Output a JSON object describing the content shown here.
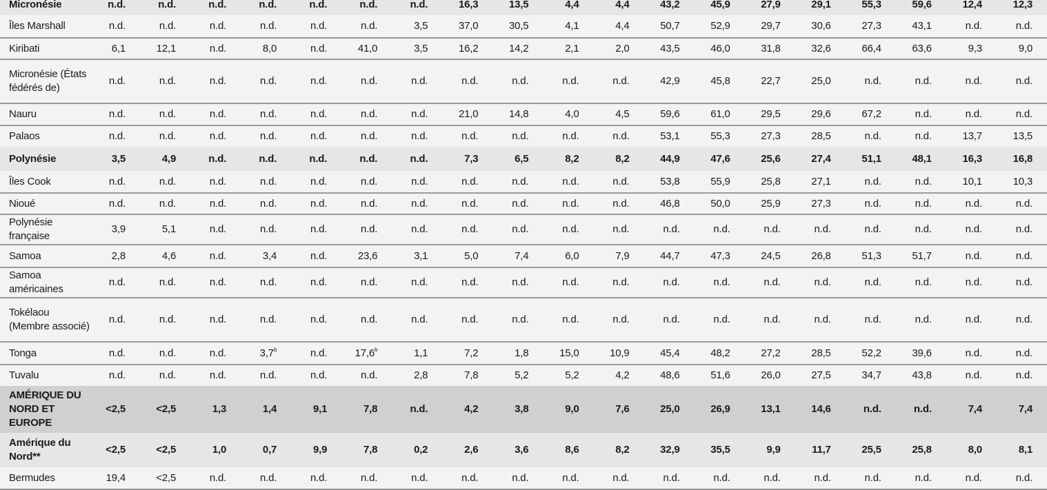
{
  "table": {
    "rows": [
      {
        "type": "group",
        "h": 31,
        "name": "Micronésie",
        "cells": [
          "n.d.",
          "n.d.",
          "n.d.",
          "n.d.",
          "n.d.",
          "n.d.",
          "n.d.",
          "16,3",
          "13,5",
          "4,4",
          "4,4",
          "43,2",
          "45,9",
          "27,9",
          "29,1",
          "55,3",
          "59,6",
          "12,4",
          "12,3"
        ]
      },
      {
        "type": "normal",
        "h": 33,
        "name": "Îles Marshall",
        "cells": [
          "n.d.",
          "n.d.",
          "n.d.",
          "n.d.",
          "n.d.",
          "n.d.",
          "3,5",
          "37,0",
          "30,5",
          "4,1",
          "4,4",
          "50,7",
          "52,9",
          "29,7",
          "30,6",
          "27,3",
          "43,1",
          "n.d.",
          "n.d."
        ]
      },
      {
        "type": "normal",
        "h": 31,
        "name": "Kiribati",
        "cells": [
          "6,1",
          "12,1",
          "n.d.",
          "8,0",
          "n.d.",
          "41,0",
          "3,5",
          "16,2",
          "14,2",
          "2,1",
          "2,0",
          "43,5",
          "46,0",
          "31,8",
          "32,6",
          "66,4",
          "63,6",
          "9,3",
          "9,0"
        ]
      },
      {
        "type": "normal",
        "h": 64,
        "name": "Micronésie (États fédérés de)",
        "cells": [
          "n.d.",
          "n.d.",
          "n.d.",
          "n.d.",
          "n.d.",
          "n.d.",
          "n.d.",
          "n.d.",
          "n.d.",
          "n.d.",
          "n.d.",
          "42,9",
          "45,8",
          "22,7",
          "25,0",
          "n.d.",
          "n.d.",
          "n.d.",
          "n.d."
        ]
      },
      {
        "type": "normal",
        "h": 32,
        "name": "Nauru",
        "cells": [
          "n.d.",
          "n.d.",
          "n.d.",
          "n.d.",
          "n.d.",
          "n.d.",
          "n.d.",
          "21,0",
          "14,8",
          "4,0",
          "4,5",
          "59,6",
          "61,0",
          "29,5",
          "29,6",
          "67,2",
          "n.d.",
          "n.d.",
          "n.d."
        ]
      },
      {
        "type": "normal",
        "h": 31,
        "name": "Palaos",
        "nob": true,
        "cells": [
          "n.d.",
          "n.d.",
          "n.d.",
          "n.d.",
          "n.d.",
          "n.d.",
          "n.d.",
          "n.d.",
          "n.d.",
          "n.d.",
          "n.d.",
          "53,1",
          "55,3",
          "27,3",
          "28,5",
          "n.d.",
          "n.d.",
          "13,7",
          "13,5"
        ]
      },
      {
        "type": "group",
        "h": 35,
        "name": "Polynésie",
        "cells": [
          "3,5",
          "4,9",
          "n.d.",
          "n.d.",
          "n.d.",
          "n.d.",
          "n.d.",
          "7,3",
          "6,5",
          "8,2",
          "8,2",
          "44,9",
          "47,6",
          "25,6",
          "27,4",
          "51,1",
          "48,1",
          "16,3",
          "16,8"
        ]
      },
      {
        "type": "normal",
        "h": 32,
        "name": "Îles Cook",
        "cells": [
          "n.d.",
          "n.d.",
          "n.d.",
          "n.d.",
          "n.d.",
          "n.d.",
          "n.d.",
          "n.d.",
          "n.d.",
          "n.d.",
          "n.d.",
          "53,8",
          "55,9",
          "25,8",
          "27,1",
          "n.d.",
          "n.d.",
          "10,1",
          "10,3"
        ]
      },
      {
        "type": "normal",
        "h": 31,
        "name": "Nioué",
        "cells": [
          "n.d.",
          "n.d.",
          "n.d.",
          "n.d.",
          "n.d.",
          "n.d.",
          "n.d.",
          "n.d.",
          "n.d.",
          "n.d.",
          "n.d.",
          "46,8",
          "50,0",
          "25,9",
          "27,3",
          "n.d.",
          "n.d.",
          "n.d.",
          "n.d."
        ]
      },
      {
        "type": "normal",
        "h": 44,
        "name": "Polynésie française",
        "cells": [
          "3,9",
          "5,1",
          "n.d.",
          "n.d.",
          "n.d.",
          "n.d.",
          "n.d.",
          "n.d.",
          "n.d.",
          "n.d.",
          "n.d.",
          "n.d.",
          "n.d.",
          "n.d.",
          "n.d.",
          "n.d.",
          "n.d.",
          "n.d.",
          "n.d."
        ]
      },
      {
        "type": "normal",
        "h": 33,
        "name": "Samoa",
        "cells": [
          "2,8",
          "4,6",
          "n.d.",
          "3,4",
          "n.d.",
          "23,6",
          "3,1",
          "5,0",
          "7,4",
          "6,0",
          "7,9",
          "44,7",
          "47,3",
          "24,5",
          "26,8",
          "51,3",
          "51,7",
          "n.d.",
          "n.d."
        ]
      },
      {
        "type": "normal",
        "h": 44,
        "name": "Samoa américaines",
        "cells": [
          "n.d.",
          "n.d.",
          "n.d.",
          "n.d.",
          "n.d.",
          "n.d.",
          "n.d.",
          "n.d.",
          "n.d.",
          "n.d.",
          "n.d.",
          "n.d.",
          "n.d.",
          "n.d.",
          "n.d.",
          "n.d.",
          "n.d.",
          "n.d.",
          "n.d."
        ]
      },
      {
        "type": "normal",
        "h": 64,
        "name": "Tokélaou (Membre associé)",
        "cells": [
          "n.d.",
          "n.d.",
          "n.d.",
          "n.d.",
          "n.d.",
          "n.d.",
          "n.d.",
          "n.d.",
          "n.d.",
          "n.d.",
          "n.d.",
          "n.d.",
          "n.d.",
          "n.d.",
          "n.d.",
          "n.d.",
          "n.d.",
          "n.d.",
          "n.d."
        ]
      },
      {
        "type": "normal",
        "h": 33,
        "name": "Tonga",
        "cells": [
          "n.d.",
          "n.d.",
          "n.d.",
          {
            "v": "3,7",
            "sup": "b"
          },
          "n.d.",
          {
            "v": "17,6",
            "sup": "b"
          },
          "1,1",
          "7,2",
          "1,8",
          "15,0",
          "10,9",
          "45,4",
          "48,2",
          "27,2",
          "28,5",
          "52,2",
          "39,6",
          "n.d.",
          "n.d."
        ]
      },
      {
        "type": "normal",
        "h": 31,
        "name": "Tuvalu",
        "nob": true,
        "cells": [
          "n.d.",
          "n.d.",
          "n.d.",
          "n.d.",
          "n.d.",
          "n.d.",
          "2,8",
          "7,8",
          "5,2",
          "5,2",
          "4,2",
          "48,6",
          "51,6",
          "26,0",
          "27,5",
          "34,7",
          "43,8",
          "n.d.",
          "n.d."
        ]
      },
      {
        "type": "region",
        "h": 68,
        "name": "AMÉRIQUE DU NORD ET EUROPE",
        "cells": [
          "<2,5",
          "<2,5",
          "1,3",
          "1,4",
          "9,1",
          "7,8",
          "n.d.",
          "4,2",
          "3,8",
          "9,0",
          "7,6",
          "25,0",
          "26,9",
          "13,1",
          "14,6",
          "n.d.",
          "n.d.",
          "7,4",
          "7,4"
        ]
      },
      {
        "type": "subregion",
        "h": 50,
        "name": "Amérique du Nord**",
        "cells": [
          "<2,5",
          "<2,5",
          "1,0",
          "0,7",
          "9,9",
          "7,8",
          "0,2",
          "2,6",
          "3,6",
          "8,6",
          "8,2",
          "32,9",
          "35,5",
          "9,9",
          "11,7",
          "25,5",
          "25,8",
          "8,0",
          "8,1"
        ]
      },
      {
        "type": "normal",
        "h": 32,
        "name": "Bermudes",
        "cells": [
          "19,4",
          "<2,5",
          "n.d.",
          "n.d.",
          "n.d.",
          "n.d.",
          "n.d.",
          "n.d.",
          "n.d.",
          "n.d.",
          "n.d.",
          "n.d.",
          "n.d.",
          "n.d.",
          "n.d.",
          "n.d.",
          "n.d.",
          "n.d.",
          "n.d."
        ]
      }
    ]
  }
}
